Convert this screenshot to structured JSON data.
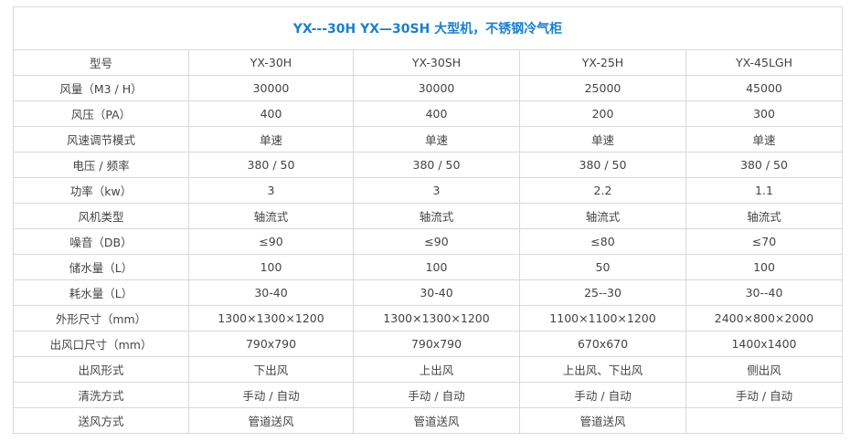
{
  "title": "YX---30H YX—30SH 大型机，不锈钢冷气柜",
  "rows": [
    [
      "型号",
      "YX-30H",
      "YX-30SH",
      "YX-25H",
      "YX-45LGH"
    ],
    [
      "风量（M3 / H）",
      "30000",
      "30000",
      "25000",
      "45000"
    ],
    [
      "风压（PA）",
      "400",
      "400",
      "200",
      "300"
    ],
    [
      "风速调节模式",
      "单速",
      "单速",
      "单速",
      "单速"
    ],
    [
      "电压 / 频率",
      "380 / 50",
      "380 / 50",
      "380 / 50",
      "380 / 50"
    ],
    [
      "功率（kw）",
      "3",
      "3",
      "2.2",
      "1.1"
    ],
    [
      "风机类型",
      "轴流式",
      "轴流式",
      "轴流式",
      "轴流式"
    ],
    [
      "噪音（DB）",
      "≤90",
      "≤90",
      "≤80",
      "≤70"
    ],
    [
      "储水量（L）",
      "100",
      "100",
      "50",
      "100"
    ],
    [
      "耗水量（L）",
      "30-40",
      "30-40",
      "25--30",
      "30--40"
    ],
    [
      "外形尺寸（mm）",
      "1300×1300×1200",
      "1300×1300×1200",
      "1100×1100×1200",
      "2400×800×2000"
    ],
    [
      "出风口尺寸（mm）",
      "790x790",
      "790x790",
      "670x670",
      "1400x1400"
    ],
    [
      "出风形式",
      "下出风",
      "上出风",
      "上出风、下出风",
      "侧出风"
    ],
    [
      "清洗方式",
      "手动 / 自动",
      "手动 / 自动",
      "手动 / 自动",
      "手动 / 自动"
    ],
    [
      "送风方式",
      "管道送风",
      "管道送风",
      "管道送风",
      ""
    ]
  ]
}
